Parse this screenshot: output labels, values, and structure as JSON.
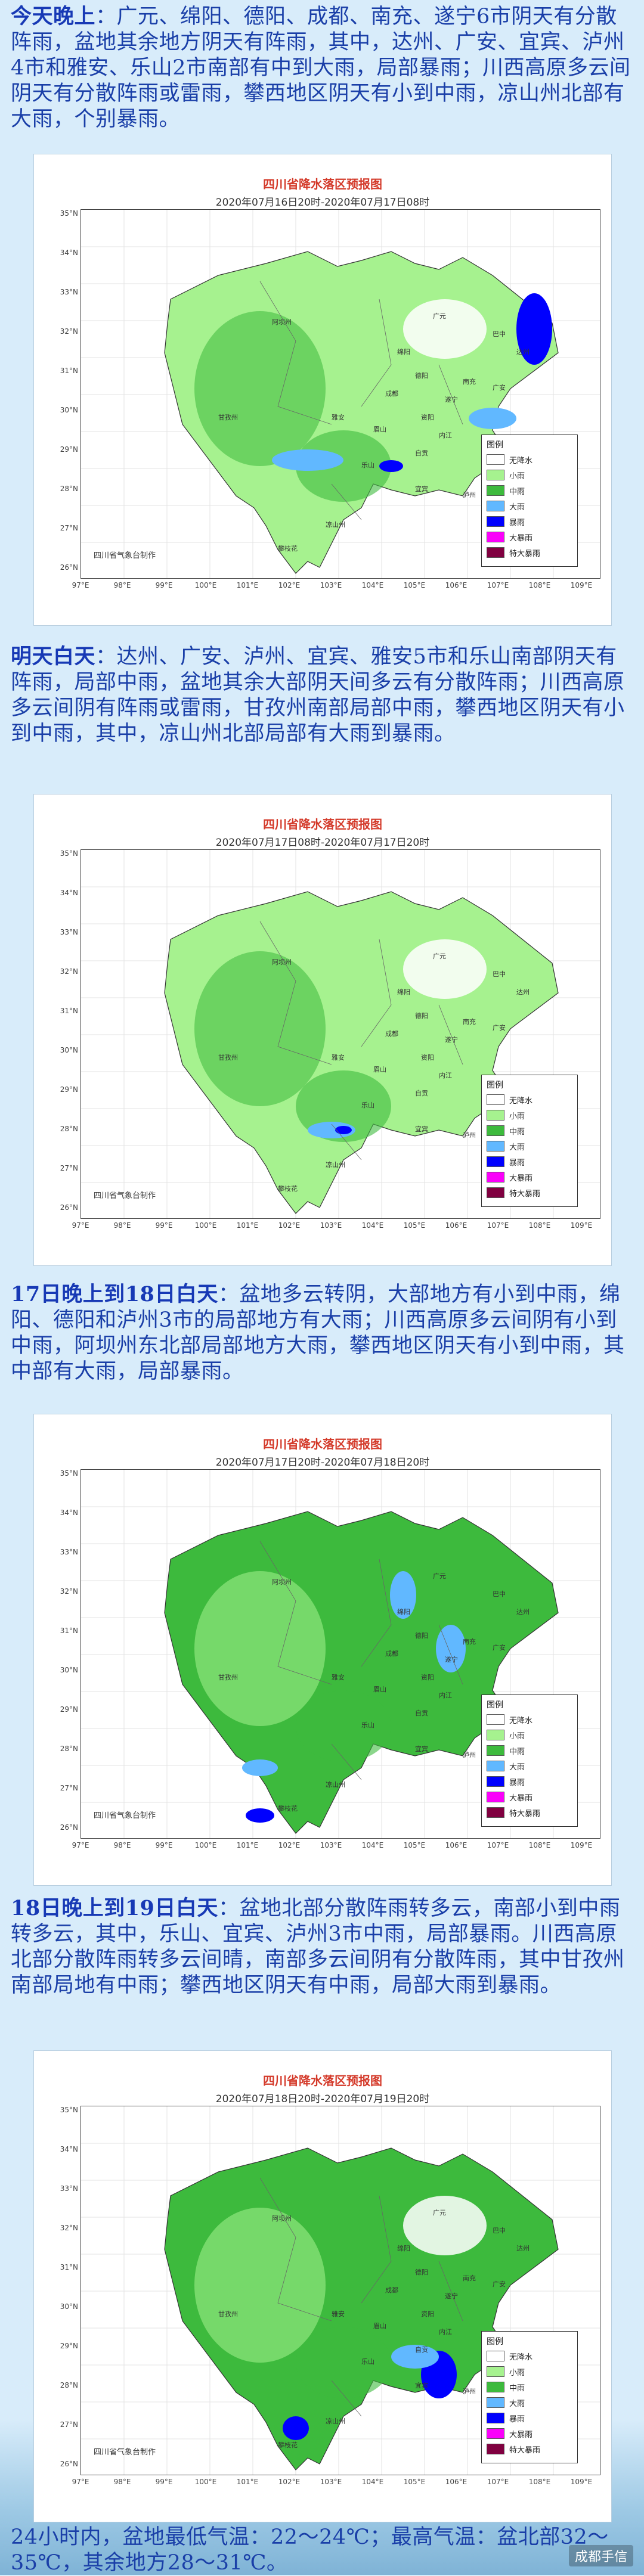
{
  "sections": [
    {
      "title": "今天晚上",
      "body": "：广元、绵阳、德阳、成都、南充、遂宁6市阴天有分散阵雨，盆地其余地方阴天有阵雨，其中，达州、广安、宜宾、泸州4市和雅安、乐山2市南部有中到大雨，局部暴雨；川西高原多云间阴天有分散阵雨或雷雨，攀西地区阴天有小到中雨，凉山州北部有大雨，个别暴雨。",
      "map": {
        "title": "四川省降水落区预报图",
        "period": "2020年07月16日20时-2020年07月17日08时"
      }
    },
    {
      "title": "明天白天",
      "body": "：达州、广安、泸州、宜宾、雅安5市和乐山南部阴天有阵雨，局部中雨，盆地其余大部阴天间多云有分散阵雨；川西高原多云间阴有阵雨或雷雨，甘孜州南部局部中雨，攀西地区阴天有小到中雨，其中，凉山州北部局部有大雨到暴雨。",
      "map": {
        "title": "四川省降水落区预报图",
        "period": "2020年07月17日08时-2020年07月17日20时"
      }
    },
    {
      "title": "17日晚上到18日白天",
      "body": "：盆地多云转阴，大部地方有小到中雨，绵阳、德阳和泸州3市的局部地方有大雨；川西高原多云间阴有小到中雨，阿坝州东北部局部地方大雨，攀西地区阴天有小到中雨，其中部有大雨，局部暴雨。",
      "map": {
        "title": "四川省降水落区预报图",
        "period": "2020年07月17日20时-2020年07月18日20时"
      }
    },
    {
      "title": "18日晚上到19日白天",
      "body": "：盆地北部分散阵雨转多云，南部小到中雨转多云，其中，乐山、宜宾、泸州3市中雨，局部暴雨。川西高原北部分散阵雨转多云间晴，南部多云间阴有分散阵雨，其中甘孜州南部局地有中雨；攀西地区阴天有中雨，局部大雨到暴雨。",
      "map": {
        "title": "四川省降水落区预报图",
        "period": "2020年07月18日20时-2020年07月19日20时"
      }
    }
  ],
  "footer": "24小时内，盆地最低气温：22～24℃；最高气温：盆北部32～35℃，其余地方28～31℃。",
  "watermark": "成都手信",
  "map_common": {
    "credit": "四川省气象台制作",
    "y_ticks": [
      "35°N",
      "34°N",
      "33°N",
      "32°N",
      "31°N",
      "30°N",
      "29°N",
      "28°N",
      "27°N",
      "26°N"
    ],
    "x_ticks": [
      "97°E",
      "98°E",
      "99°E",
      "100°E",
      "101°E",
      "102°E",
      "103°E",
      "104°E",
      "105°E",
      "106°E",
      "107°E",
      "108°E",
      "109°E"
    ],
    "legend_title": "图例",
    "legend": [
      {
        "label": "无降水",
        "color": "#ffffff"
      },
      {
        "label": "小雨",
        "color": "#a6f28f"
      },
      {
        "label": "中雨",
        "color": "#3dba3d"
      },
      {
        "label": "大雨",
        "color": "#61b8ff"
      },
      {
        "label": "暴雨",
        "color": "#0000fe"
      },
      {
        "label": "大暴雨",
        "color": "#fa00fa"
      },
      {
        "label": "特大暴雨",
        "color": "#800040"
      }
    ],
    "cities": [
      "广元",
      "巴中",
      "达州",
      "南充",
      "绵阳",
      "德阳",
      "成都",
      "遂宁",
      "广安",
      "资阳",
      "内江",
      "自贡",
      "乐山",
      "眉山",
      "雅安",
      "宜宾",
      "泸州",
      "攀枝花",
      "阿坝州",
      "甘孜州",
      "凉山州"
    ]
  }
}
